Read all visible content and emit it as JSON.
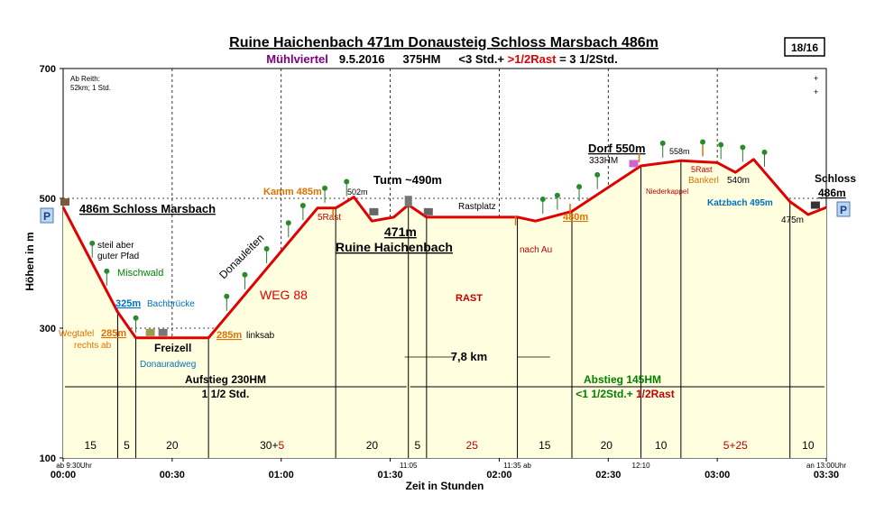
{
  "header": {
    "title_line1": "Ruine Haichenbach 471m Donausteig Schloss Marsbach 486m",
    "title_region": "Mühlviertel",
    "title_date": "9.5.2016",
    "title_hm": "375HM",
    "title_duration_a": "<3 Std.+ ",
    "title_duration_b": ">1/2Rast",
    "title_duration_c": " = 3 1/2Std.",
    "badge": "18/16"
  },
  "chart_data": {
    "type": "area",
    "xlabel": "Zeit in Stunden",
    "ylabel": "Höhen in m",
    "xlim": [
      0,
      210
    ],
    "ylim": [
      100,
      700
    ],
    "y_ticks": [
      100,
      300,
      500,
      700
    ],
    "x_ticks": [
      {
        "t": 0,
        "label": "00:00"
      },
      {
        "t": 30,
        "label": "00:30"
      },
      {
        "t": 60,
        "label": "01:00"
      },
      {
        "t": 90,
        "label": "01:30"
      },
      {
        "t": 120,
        "label": "02:00"
      },
      {
        "t": 150,
        "label": "02:30"
      },
      {
        "t": 180,
        "label": "03:00"
      },
      {
        "t": 210,
        "label": "03:30"
      }
    ],
    "profile": [
      {
        "t": 0,
        "h": 486
      },
      {
        "t": 15,
        "h": 325
      },
      {
        "t": 20,
        "h": 285
      },
      {
        "t": 40,
        "h": 285
      },
      {
        "t": 70,
        "h": 485
      },
      {
        "t": 75,
        "h": 485
      },
      {
        "t": 80,
        "h": 502
      },
      {
        "t": 85,
        "h": 465
      },
      {
        "t": 91,
        "h": 471
      },
      {
        "t": 95,
        "h": 490
      },
      {
        "t": 100,
        "h": 471
      },
      {
        "t": 125,
        "h": 471
      },
      {
        "t": 130,
        "h": 465
      },
      {
        "t": 140,
        "h": 480
      },
      {
        "t": 159,
        "h": 550
      },
      {
        "t": 170,
        "h": 558
      },
      {
        "t": 180,
        "h": 555
      },
      {
        "t": 185,
        "h": 540
      },
      {
        "t": 190,
        "h": 560
      },
      {
        "t": 200,
        "h": 495
      },
      {
        "t": 205,
        "h": 475
      },
      {
        "t": 210,
        "h": 486
      }
    ],
    "segments": [
      {
        "t0": 0,
        "t1": 15,
        "label": "15"
      },
      {
        "t0": 15,
        "t1": 20,
        "label": "5"
      },
      {
        "t0": 20,
        "t1": 40,
        "label": "20"
      },
      {
        "t0": 40,
        "t1": 75,
        "label": "30+",
        "label_red": "5"
      },
      {
        "t0": 75,
        "t1": 95,
        "label": "20"
      },
      {
        "t0": 95,
        "t1": 100,
        "label": "5"
      },
      {
        "t0": 100,
        "t1": 125,
        "label": "25",
        "label_red_only": true
      },
      {
        "t0": 125,
        "t1": 140,
        "label": "15"
      },
      {
        "t0": 140,
        "t1": 159,
        "label": "20"
      },
      {
        "t0": 159,
        "t1": 170,
        "label": "10"
      },
      {
        "t0": 170,
        "t1": 200,
        "label": "",
        "label_red": "5+25"
      },
      {
        "t0": 200,
        "t1": 210,
        "label": "10"
      }
    ],
    "dividers": [
      15,
      20,
      40,
      75,
      95,
      100,
      125,
      140,
      159,
      170,
      200
    ],
    "time_notes": [
      {
        "t": 0,
        "label": "ab 9:30Uhr"
      },
      {
        "t": 95,
        "label": "11:05"
      },
      {
        "t": 125,
        "label": "11:35 ab"
      },
      {
        "t": 159,
        "label": "12:10"
      },
      {
        "t": 210,
        "label": "an 13:00Uhr"
      }
    ],
    "annotations": {
      "ab_reith": "Ab Reith:",
      "ab_reith_2": "52km; 1 Std.",
      "start_name": "486m Schloss Marsbach",
      "steil1": "steil aber",
      "steil2": "guter Pfad",
      "mischwald": "Mischwald",
      "bach_h": "325m",
      "bach_n": "Bachbrücke",
      "wegtafel": "Wegtafel",
      "wegtafel_h": "285m",
      "rechts_ab": "rechts ab",
      "freizell": "Freizell",
      "donauradweg": "Donauradweg",
      "links_h": "285m",
      "links_ab": "linksab",
      "donauleiten": "Donauleiten",
      "weg88": "WEG 88",
      "kamm": "Kamm 485m",
      "rast5": "5Rast",
      "h502": "502m",
      "turm": "Turm ~490m",
      "ruine_h": "471m",
      "ruine_n": "Ruine Haichenbach",
      "rastplatz": "Rastplatz",
      "rast": "RAST",
      "nach_au": "nach Au",
      "h480": "480m",
      "dorf": "Dorf 550m",
      "hm333": "333HM",
      "niederkappel": "Niederkappel",
      "h558": "558m",
      "rast5b": "5Rast",
      "bankerl": "Bankerl",
      "h540": "540m",
      "katzbach": "Katzbach 495m",
      "h475": "475m",
      "schloss1": "Schloss",
      "schloss2": "486m",
      "dist": "7,8 km",
      "aufstieg1": "Aufstieg 230HM",
      "aufstieg2": "1 1/2 Std.",
      "abstieg1": "Abstieg 145HM",
      "abstieg2a": "<1 1/2Std.+ ",
      "abstieg2b": "1/2Rast",
      "parking": "P",
      "plus": "+"
    },
    "trees": [
      8,
      12,
      20,
      45,
      50,
      56,
      62,
      66,
      72,
      78,
      132,
      136,
      142,
      147,
      165,
      176,
      181,
      187,
      193
    ],
    "colors": {
      "fill": "#ffffe0",
      "profile": "#e00000",
      "axis": "#000000",
      "orange": "#e07000",
      "blue": "#0070c0",
      "green": "#008000",
      "purple": "#800080",
      "darkred": "#c00000"
    }
  }
}
